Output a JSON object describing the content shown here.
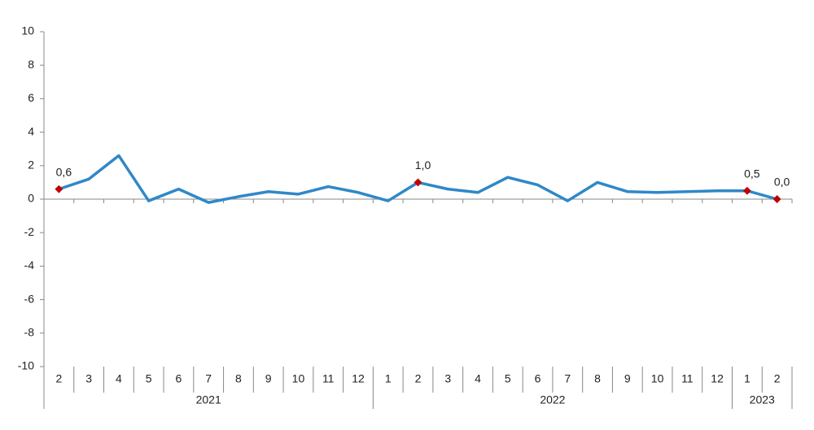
{
  "chart_data": {
    "type": "line",
    "groups": [
      {
        "name": "2021",
        "categories": [
          "2",
          "3",
          "4",
          "5",
          "6",
          "7",
          "8",
          "9",
          "10",
          "11",
          "12"
        ]
      },
      {
        "name": "2022",
        "categories": [
          "1",
          "2",
          "3",
          "4",
          "5",
          "6",
          "7",
          "8",
          "9",
          "10",
          "11",
          "12"
        ]
      },
      {
        "name": "2023",
        "categories": [
          "1",
          "2"
        ]
      }
    ],
    "series": [
      {
        "color": "#2f88c8",
        "marker_color": "#c00000",
        "values": [
          0.6,
          1.2,
          2.6,
          -0.1,
          0.6,
          -0.2,
          0.15,
          0.45,
          0.3,
          0.75,
          0.4,
          -0.1,
          1.0,
          0.6,
          0.4,
          1.3,
          0.85,
          -0.1,
          1.0,
          0.45,
          0.4,
          0.45,
          0.5,
          0.5,
          0.0
        ],
        "value_labels": [
          "0,6",
          null,
          null,
          null,
          null,
          null,
          null,
          null,
          null,
          null,
          null,
          null,
          "1,0",
          null,
          null,
          null,
          null,
          null,
          null,
          null,
          null,
          null,
          null,
          "0,5",
          "0,0"
        ]
      }
    ],
    "ylim": [
      -10,
      10
    ],
    "yticks": [
      -10,
      -8,
      -6,
      -4,
      -2,
      0,
      2,
      4,
      6,
      8,
      10
    ]
  }
}
